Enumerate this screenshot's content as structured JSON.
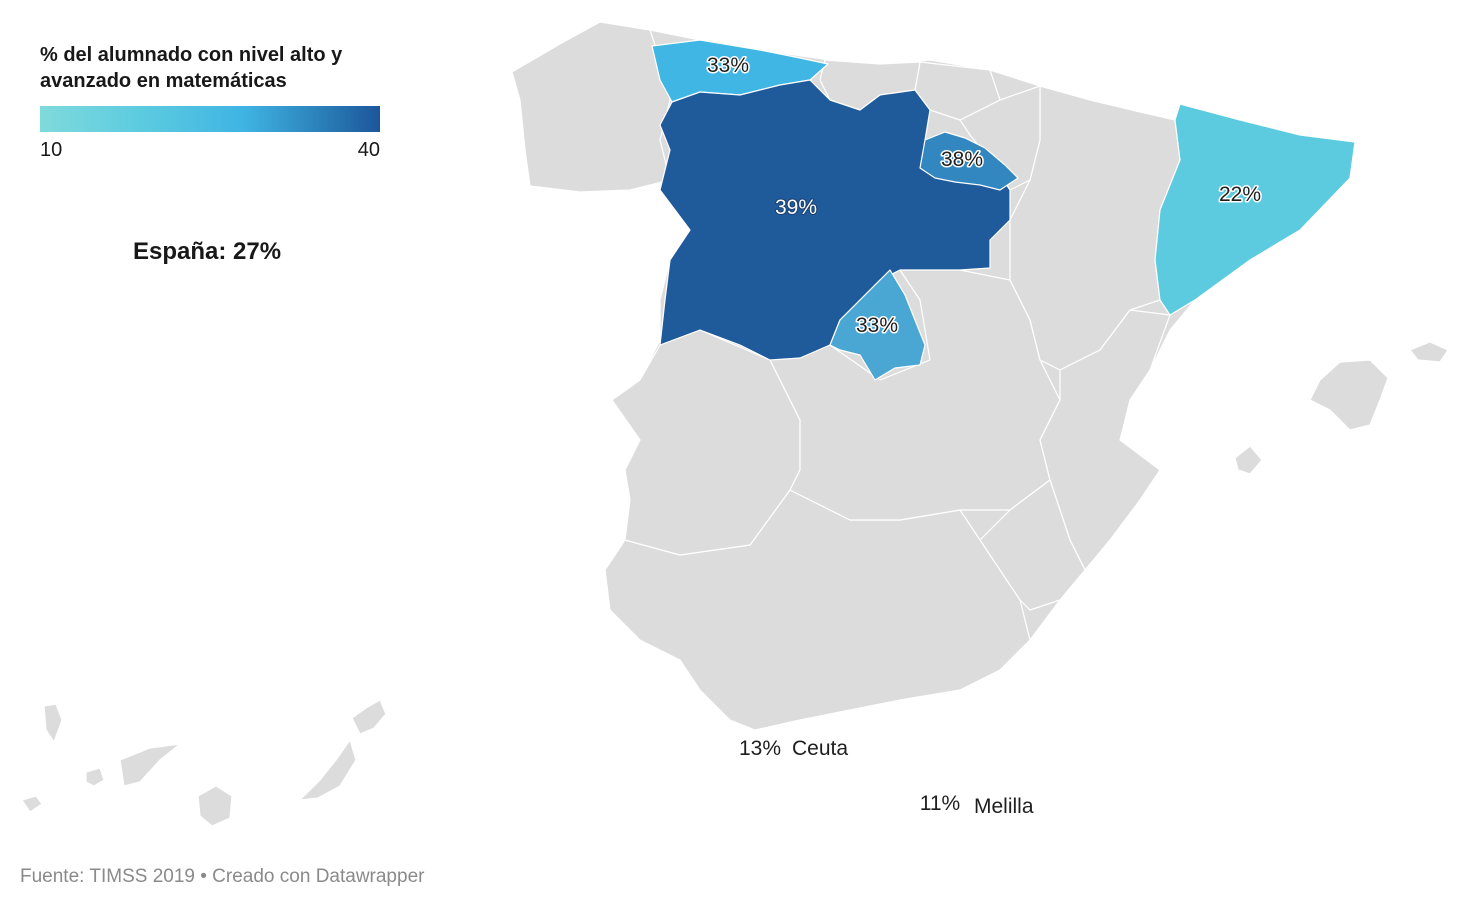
{
  "legend": {
    "title": "% del alumnado con nivel alto y avanzado en matemáticas",
    "min_label": "10",
    "max_label": "40",
    "min_value": 10,
    "max_value": 40,
    "gradient_colors": [
      "#7fdadc",
      "#5ccbe0",
      "#3fb4e3",
      "#2d86bd",
      "#1c569a"
    ]
  },
  "national_summary": "España: 27%",
  "footer": "Fuente: TIMSS 2019 • Creado con Datawrapper",
  "colors": {
    "no_data": "#dcdcdc",
    "castilla_y_leon": "#1f5a9b",
    "la_rioja": "#3387c0",
    "asturias": "#3fb6e4",
    "madrid": "#4aa7d3",
    "cataluna": "#5ccbe0",
    "border": "#ffffff"
  },
  "regions": [
    {
      "id": "asturias",
      "label": "33%",
      "value": 33
    },
    {
      "id": "castilla-y-leon",
      "label": "39%",
      "value": 39
    },
    {
      "id": "la-rioja",
      "label": "38%",
      "value": 38
    },
    {
      "id": "madrid",
      "label": "33%",
      "value": 33
    },
    {
      "id": "cataluna",
      "label": "22%",
      "value": 22
    },
    {
      "id": "ceuta",
      "label": "13%",
      "value": 13,
      "name": "Ceuta"
    },
    {
      "id": "melilla",
      "label": "11%",
      "value": 11,
      "name": "Melilla"
    }
  ]
}
